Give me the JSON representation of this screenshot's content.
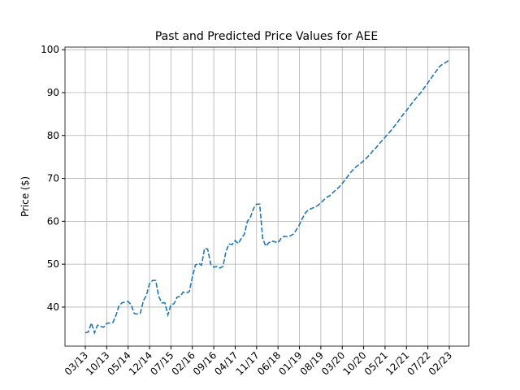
{
  "chart_data": {
    "type": "line",
    "title": "Past and Predicted Price Values for AEE",
    "ylabel": "Price ($)",
    "categories": [
      "03/13",
      null,
      null,
      null,
      null,
      null,
      null,
      "10/13",
      null,
      null,
      null,
      null,
      null,
      null,
      "05/14",
      null,
      null,
      null,
      null,
      null,
      null,
      "12/14",
      null,
      null,
      null,
      null,
      null,
      null,
      "07/15",
      null,
      null,
      null,
      null,
      null,
      null,
      "02/16",
      null,
      null,
      null,
      null,
      null,
      null,
      "09/16",
      null,
      null,
      null,
      null,
      null,
      null,
      "04/17",
      null,
      null,
      null,
      null,
      null,
      null,
      "11/17",
      null,
      null,
      null,
      null,
      null,
      null,
      "06/18",
      null,
      null,
      null,
      null,
      null,
      null,
      "01/19",
      null,
      null,
      null,
      null,
      null,
      null,
      "08/19",
      null,
      null,
      null,
      null,
      null,
      null,
      "03/20",
      null,
      null,
      null,
      null,
      null,
      null,
      "10/20",
      null,
      null,
      null,
      null,
      null,
      null,
      "05/21",
      null,
      null,
      null,
      null,
      null,
      null,
      "12/21",
      null,
      null,
      null,
      null,
      null,
      null,
      "07/22",
      null,
      null,
      null,
      null,
      null,
      null,
      "02/23"
    ],
    "series": [
      {
        "name": "Price",
        "color": "#1f77b4",
        "values": [
          34,
          34.2,
          36.3,
          34,
          35.8,
          35.5,
          35.3,
          36.2,
          36.3,
          36.4,
          38,
          40.3,
          41,
          41.2,
          41.3,
          40.5,
          38.5,
          38.4,
          38.6,
          41.5,
          42.8,
          45.5,
          46.2,
          46.2,
          42.5,
          41,
          41,
          38.2,
          40.5,
          40.8,
          42.3,
          42.5,
          43.5,
          43.3,
          43.6,
          47,
          49.8,
          50.2,
          49.8,
          53.7,
          53.5,
          50,
          49.3,
          49.5,
          49.1,
          49.5,
          53,
          54.7,
          54.6,
          55.5,
          54.8,
          56,
          57,
          60,
          61,
          63,
          64,
          64,
          56,
          54.2,
          55,
          55.4,
          55.2,
          55,
          56,
          56.5,
          56.4,
          56.6,
          57,
          58,
          59.2,
          60.7,
          62,
          62.7,
          63,
          63.3,
          63.7,
          64.3,
          65,
          65.6,
          66,
          66.7,
          67.4,
          68,
          68.8,
          69.7,
          70.7,
          71.6,
          72.3,
          73,
          73.5,
          74.1,
          74.8,
          75.5,
          76.4,
          77.1,
          78,
          78.8,
          79.6,
          80.4,
          81.2,
          82.1,
          83,
          84,
          85,
          85.8,
          86.8,
          87.7,
          88.6,
          89.4,
          90.3,
          91.3,
          92.3,
          93.3,
          94.3,
          95.3,
          96.2,
          96.7,
          97.1,
          97.6
        ]
      }
    ],
    "ylim": [
      30.9,
      100.6
    ],
    "yticks": [
      40,
      50,
      60,
      70,
      80,
      90,
      100
    ],
    "grid": true,
    "dashed": true
  }
}
